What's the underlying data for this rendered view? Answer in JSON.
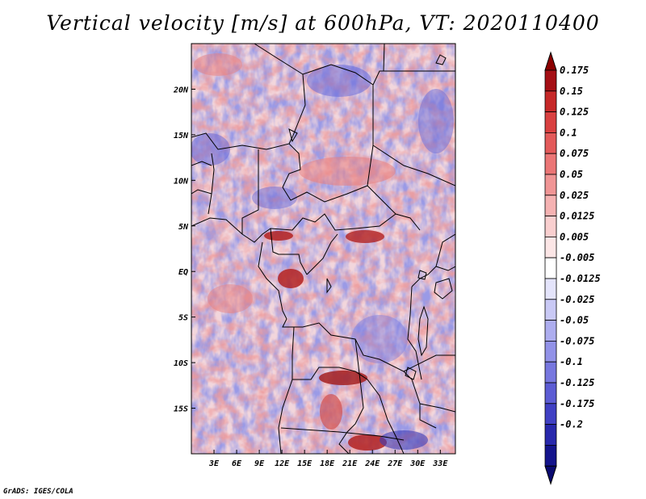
{
  "title": "Vertical velocity [m/s] at 600hPa, VT: 2020110400",
  "credit": "GrADS: IGES/COLA",
  "map": {
    "lon_range": [
      0,
      35
    ],
    "lat_range": [
      -20,
      25
    ],
    "lat_ticks": [
      {
        "value": 20,
        "label": "20N"
      },
      {
        "value": 15,
        "label": "15N"
      },
      {
        "value": 10,
        "label": "10N"
      },
      {
        "value": 5,
        "label": "5N"
      },
      {
        "value": 0,
        "label": "EQ"
      },
      {
        "value": -5,
        "label": "5S"
      },
      {
        "value": -10,
        "label": "10S"
      },
      {
        "value": -15,
        "label": "15S"
      }
    ],
    "lon_ticks": [
      {
        "value": 3,
        "label": "3E"
      },
      {
        "value": 6,
        "label": "6E"
      },
      {
        "value": 9,
        "label": "9E"
      },
      {
        "value": 12,
        "label": "12E"
      },
      {
        "value": 15,
        "label": "15E"
      },
      {
        "value": 18,
        "label": "18E"
      },
      {
        "value": 21,
        "label": "21E"
      },
      {
        "value": 24,
        "label": "24E"
      },
      {
        "value": 27,
        "label": "27E"
      },
      {
        "value": 30,
        "label": "30E"
      },
      {
        "value": 33,
        "label": "33E"
      }
    ]
  },
  "colorbar": {
    "levels": [
      {
        "label": "0.175",
        "color": "#a50f15"
      },
      {
        "label": "0.15",
        "color": "#c62828"
      },
      {
        "label": "0.125",
        "color": "#d94040"
      },
      {
        "label": "0.1",
        "color": "#e35a5a"
      },
      {
        "label": "0.075",
        "color": "#eb7676"
      },
      {
        "label": "0.05",
        "color": "#f09595"
      },
      {
        "label": "0.025",
        "color": "#f5b2b2"
      },
      {
        "label": "0.0125",
        "color": "#f9cfcf"
      },
      {
        "label": "0.005",
        "color": "#fce6e6"
      },
      {
        "label": "-0.005",
        "color": "#ffffff"
      },
      {
        "label": "-0.0125",
        "color": "#e4e4fb"
      },
      {
        "label": "-0.025",
        "color": "#c9c9f5"
      },
      {
        "label": "-0.05",
        "color": "#adadef"
      },
      {
        "label": "-0.075",
        "color": "#9292e8"
      },
      {
        "label": "-0.1",
        "color": "#7777df"
      },
      {
        "label": "-0.125",
        "color": "#5c5cd4"
      },
      {
        "label": "-0.175",
        "color": "#4040c4"
      },
      {
        "label": "-0.2",
        "color": "#2828ac"
      },
      {
        "label": "",
        "color": "#14148c"
      }
    ],
    "top_color": "#8b0000",
    "bottom_color": "#0a0a70"
  }
}
